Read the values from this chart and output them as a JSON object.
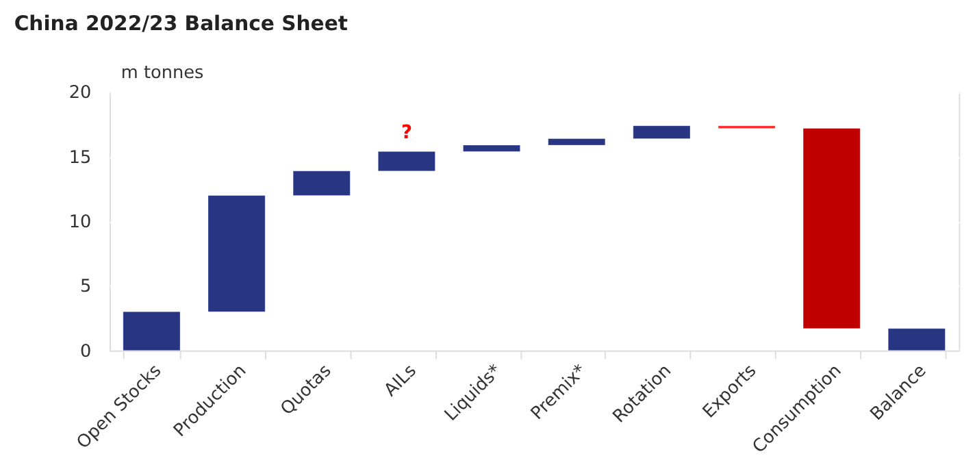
{
  "chart_data": {
    "type": "bar",
    "title": "China 2022/23 Balance Sheet",
    "ylabel": "m tonnes",
    "categories": [
      "Open Stocks",
      "Production",
      "Quotas",
      "AILs",
      "Liquids*",
      "Premix*",
      "Rotation",
      "Exports",
      "Consumption",
      "Balance"
    ],
    "values": [
      3,
      9,
      1.9,
      1.5,
      0.5,
      0.5,
      1.0,
      -0.2,
      -15.5,
      1.7
    ],
    "base": [
      0,
      3,
      12,
      13.9,
      15.4,
      15.9,
      16.4,
      17.4,
      17.2,
      0
    ],
    "colors": [
      "#283583",
      "#283583",
      "#283583",
      "#283583",
      "#283583",
      "#283583",
      "#283583",
      "#ff2a2a",
      "#c00000",
      "#283583"
    ],
    "ylim": [
      0,
      20
    ],
    "yticks": [
      0,
      5,
      10,
      15,
      20
    ],
    "grid": "y",
    "annotations": [
      {
        "text": "?",
        "x": "AILs",
        "y": 15.4
      }
    ]
  }
}
